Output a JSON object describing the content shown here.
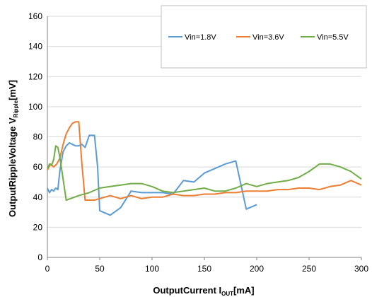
{
  "chart_data": {
    "type": "line",
    "xlabel": {
      "main": "OutputCurrent ",
      "var": "I",
      "sub": "OUT",
      "unit": "[mA]"
    },
    "ylabel": {
      "main": "OutputRippleVoltage ",
      "var": "V",
      "sub": "Ripple",
      "unit": "[mV]"
    },
    "xlim": [
      0,
      300
    ],
    "ylim": [
      0,
      160
    ],
    "xticks": [
      0,
      50,
      100,
      150,
      200,
      250,
      300
    ],
    "yticks": [
      0,
      20,
      40,
      60,
      80,
      100,
      120,
      140,
      160
    ],
    "grid": "horizontal",
    "legend_position": "top-right",
    "series": [
      {
        "name": "Vin=1.8V",
        "color": "#5b9bd5",
        "points": [
          [
            0,
            46
          ],
          [
            2,
            43
          ],
          [
            4,
            45
          ],
          [
            6,
            44
          ],
          [
            8,
            46
          ],
          [
            10,
            45
          ],
          [
            12,
            58
          ],
          [
            15,
            70
          ],
          [
            18,
            74
          ],
          [
            21,
            76
          ],
          [
            24,
            75
          ],
          [
            27,
            74
          ],
          [
            30,
            74
          ],
          [
            33,
            75
          ],
          [
            36,
            73
          ],
          [
            40,
            81
          ],
          [
            45,
            81
          ],
          [
            48,
            60
          ],
          [
            50,
            31
          ],
          [
            60,
            28
          ],
          [
            70,
            33
          ],
          [
            80,
            44
          ],
          [
            90,
            43
          ],
          [
            100,
            43
          ],
          [
            110,
            43
          ],
          [
            120,
            42
          ],
          [
            130,
            51
          ],
          [
            140,
            50
          ],
          [
            150,
            56
          ],
          [
            160,
            59
          ],
          [
            170,
            62
          ],
          [
            180,
            64
          ],
          [
            190,
            32
          ],
          [
            200,
            35
          ]
        ]
      },
      {
        "name": "Vin=3.6V",
        "color": "#ed7d31",
        "points": [
          [
            0,
            58
          ],
          [
            3,
            62
          ],
          [
            6,
            60
          ],
          [
            9,
            62
          ],
          [
            12,
            66
          ],
          [
            15,
            75
          ],
          [
            18,
            82
          ],
          [
            21,
            86
          ],
          [
            24,
            89
          ],
          [
            27,
            90
          ],
          [
            30,
            90
          ],
          [
            33,
            62
          ],
          [
            36,
            38
          ],
          [
            45,
            38
          ],
          [
            60,
            41
          ],
          [
            70,
            39
          ],
          [
            80,
            41
          ],
          [
            90,
            39
          ],
          [
            100,
            40
          ],
          [
            110,
            40
          ],
          [
            120,
            42
          ],
          [
            130,
            41
          ],
          [
            140,
            41
          ],
          [
            150,
            42
          ],
          [
            160,
            42
          ],
          [
            170,
            43
          ],
          [
            180,
            43
          ],
          [
            190,
            44
          ],
          [
            200,
            44
          ],
          [
            210,
            44
          ],
          [
            220,
            45
          ],
          [
            230,
            45
          ],
          [
            240,
            46
          ],
          [
            250,
            46
          ],
          [
            260,
            45
          ],
          [
            270,
            47
          ],
          [
            280,
            48
          ],
          [
            290,
            51
          ],
          [
            300,
            48
          ]
        ]
      },
      {
        "name": "Vin=5.5V",
        "color": "#70ad47",
        "points": [
          [
            0,
            59
          ],
          [
            2,
            62
          ],
          [
            4,
            61
          ],
          [
            6,
            65
          ],
          [
            8,
            74
          ],
          [
            10,
            73
          ],
          [
            12,
            66
          ],
          [
            15,
            52
          ],
          [
            18,
            38
          ],
          [
            22,
            39
          ],
          [
            30,
            41
          ],
          [
            40,
            43
          ],
          [
            50,
            46
          ],
          [
            60,
            47
          ],
          [
            70,
            48
          ],
          [
            80,
            49
          ],
          [
            90,
            49
          ],
          [
            100,
            47
          ],
          [
            110,
            44
          ],
          [
            120,
            43
          ],
          [
            130,
            44
          ],
          [
            140,
            45
          ],
          [
            150,
            46
          ],
          [
            160,
            44
          ],
          [
            170,
            44
          ],
          [
            180,
            46
          ],
          [
            190,
            49
          ],
          [
            200,
            47
          ],
          [
            210,
            49
          ],
          [
            220,
            50
          ],
          [
            230,
            51
          ],
          [
            240,
            53
          ],
          [
            250,
            57
          ],
          [
            260,
            62
          ],
          [
            270,
            62
          ],
          [
            280,
            60
          ],
          [
            290,
            57
          ],
          [
            300,
            52
          ]
        ]
      }
    ]
  }
}
